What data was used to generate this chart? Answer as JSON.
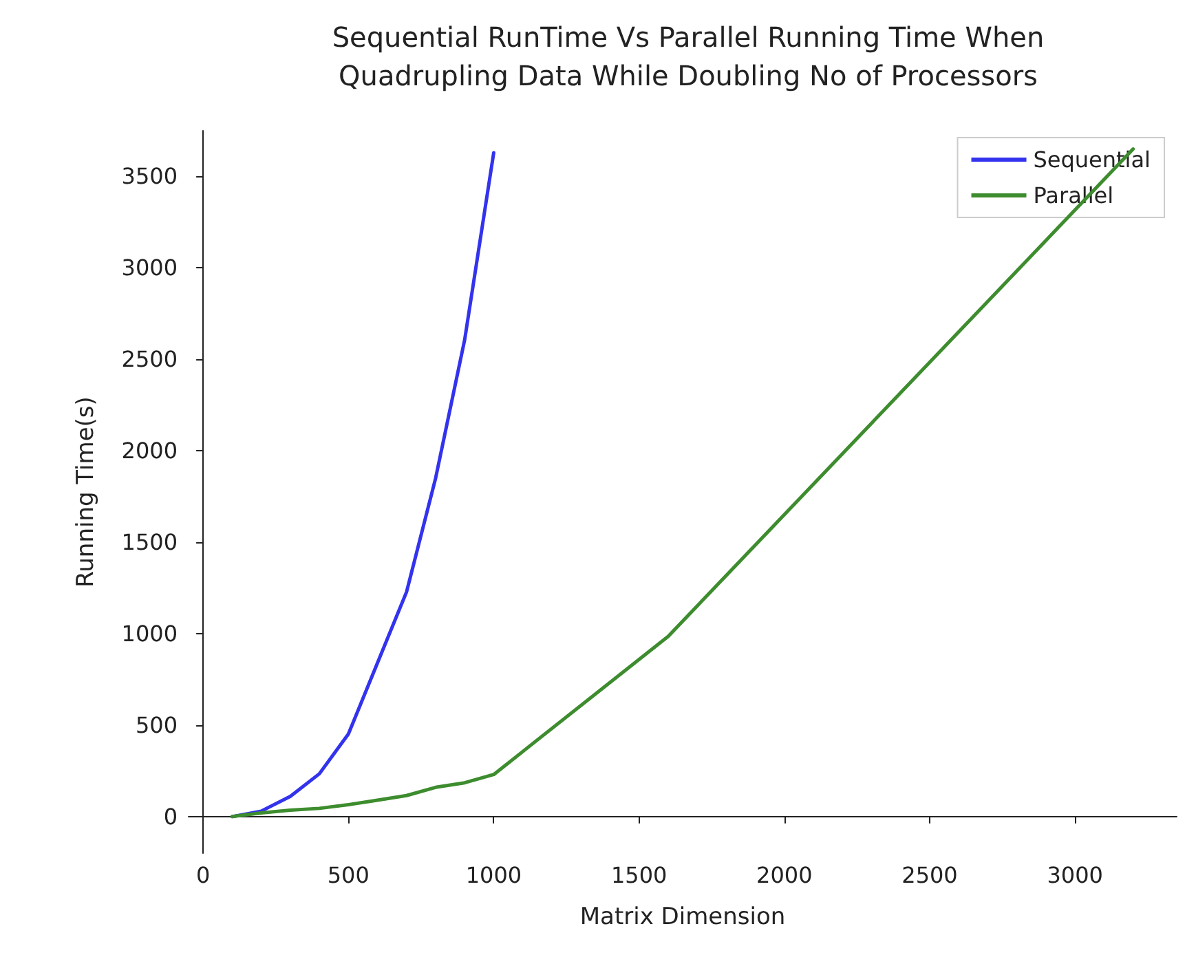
{
  "chart_data": {
    "type": "line",
    "title": "Sequential RunTime Vs Parallel Running Time When\nQuadrupling Data While Doubling No of Processors",
    "xlabel": "Matrix Dimension",
    "ylabel": "Running Time(s)",
    "series": [
      {
        "name": "Sequential",
        "color": "#3333ee",
        "x": [
          100,
          200,
          300,
          400,
          500,
          600,
          700,
          800,
          900,
          1000
        ],
        "values": [
          0,
          30,
          110,
          234,
          452,
          840,
          1228,
          1850,
          2607,
          3630
        ]
      },
      {
        "name": "Parallel",
        "color": "#3d8c2e",
        "x": [
          100,
          200,
          300,
          400,
          500,
          600,
          700,
          800,
          900,
          1000,
          1600,
          3200
        ],
        "values": [
          0,
          20,
          35,
          45,
          65,
          90,
          115,
          160,
          185,
          230,
          985,
          3650
        ]
      }
    ],
    "xlim": [
      -50,
      3350
    ],
    "xticks": [
      0,
      500,
      1000,
      1500,
      2000,
      2500,
      3000
    ],
    "ylim": [
      -200,
      3750
    ],
    "yticks": [
      0,
      500,
      1000,
      1500,
      2000,
      2500,
      3000,
      3500
    ],
    "grid": false,
    "legend": "top right",
    "marker": "none",
    "line_style": "solid"
  }
}
